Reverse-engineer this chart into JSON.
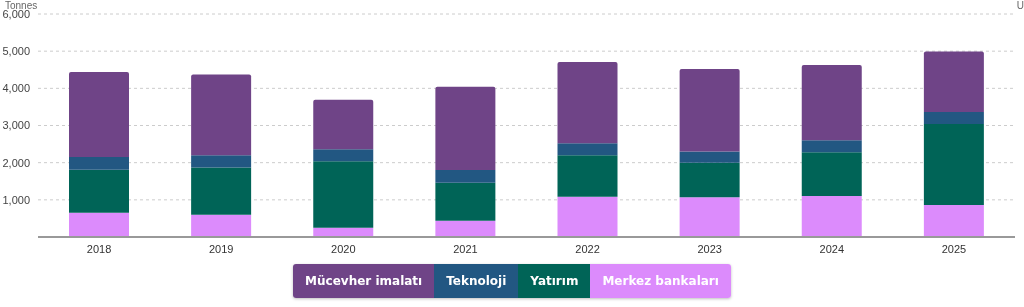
{
  "chart_data": {
    "type": "bar",
    "stacked": true,
    "ylabel": "Tonnes",
    "annotations": [
      "U"
    ],
    "categories": [
      "2018",
      "2019",
      "2020",
      "2021",
      "2022",
      "2023",
      "2024",
      "2025"
    ],
    "series": [
      {
        "name": "Merkez bankaları",
        "color": "#dc8bfc",
        "values": [
          650,
          600,
          250,
          440,
          1080,
          1070,
          1100,
          860
        ]
      },
      {
        "name": "Yatırım",
        "color": "#006457",
        "values": [
          1160,
          1270,
          1790,
          1020,
          1120,
          930,
          1180,
          2180
        ]
      },
      {
        "name": "Teknoloji",
        "color": "#225782",
        "values": [
          340,
          330,
          320,
          340,
          320,
          300,
          320,
          320
        ]
      },
      {
        "name": "Mücevher imalatı",
        "color": "#6f4487",
        "values": [
          2290,
          2170,
          1330,
          2240,
          2190,
          2220,
          2030,
          1630
        ]
      }
    ],
    "ylim": [
      0,
      6000
    ],
    "yticks": [
      {
        "value": 1000,
        "label": "1,000"
      },
      {
        "value": 2000,
        "label": "2,000"
      },
      {
        "value": 3000,
        "label": "3,000"
      },
      {
        "value": 4000,
        "label": "4,000"
      },
      {
        "value": 5000,
        "label": "5,000"
      },
      {
        "value": 6000,
        "label": "6,000"
      }
    ],
    "grid": "y",
    "legend": "bottom"
  }
}
